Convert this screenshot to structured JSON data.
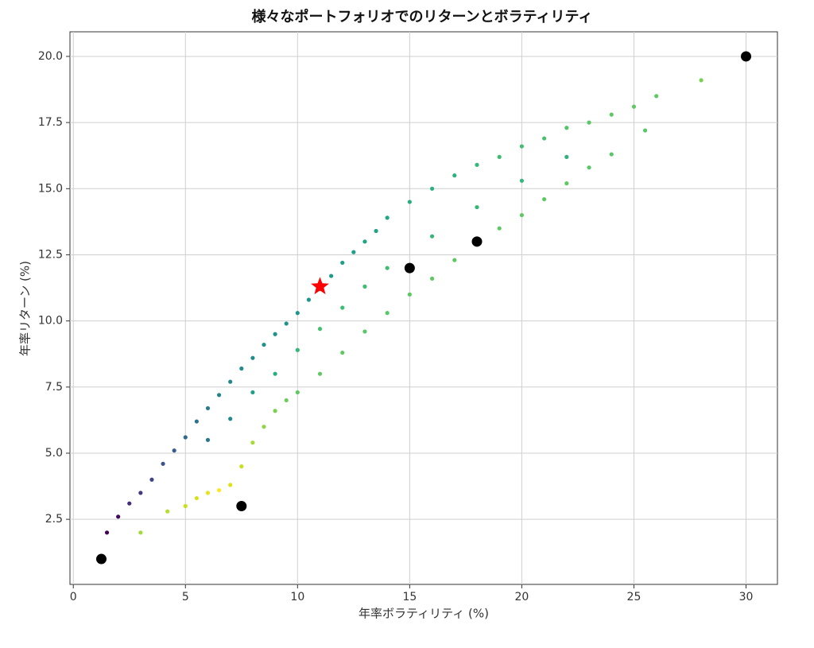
{
  "chart_data": {
    "type": "scatter",
    "title": "様々なポートフォリオでのリターンとボラティリティ",
    "xlabel": "年率ボラティリティ (%)",
    "ylabel": "年率リターン (%)",
    "xlim": [
      -0.15,
      31.4
    ],
    "ylim": [
      0.04,
      20.93
    ],
    "xticks": [
      0,
      5,
      10,
      15,
      20,
      25,
      30
    ],
    "yticks": [
      2.5,
      {
        "value": 5,
        "label": "5.0"
      },
      7.5,
      {
        "value": 10,
        "label": "10.0"
      },
      12.5,
      {
        "value": 15,
        "label": "15.0"
      },
      17.5,
      {
        "value": 20,
        "label": "20.0"
      }
    ],
    "grid": true,
    "series": [
      {
        "marker": "dot",
        "x": [
          1.5,
          2,
          2.5,
          3,
          3.5,
          4,
          4.5,
          5,
          5.5,
          6,
          6.5,
          7,
          7.5,
          8,
          8.5,
          9,
          9.5,
          10,
          10.5,
          11,
          11.5,
          12,
          12.5,
          13,
          13.5,
          14,
          15,
          16,
          17,
          18,
          19,
          20,
          21,
          22,
          23,
          24,
          25,
          26,
          28,
          3,
          4.2,
          5,
          5.5,
          6,
          6.5,
          7,
          7.5,
          8,
          8.5,
          9,
          9.5,
          10,
          11,
          12,
          13,
          14,
          15,
          16,
          17,
          18,
          19,
          20,
          21,
          22,
          23,
          24,
          25.5,
          6,
          7,
          8,
          9,
          10,
          11,
          12,
          13,
          14,
          16,
          18,
          20,
          22
        ],
        "values": [
          2,
          2.6,
          3.1,
          3.5,
          4,
          4.6,
          5.1,
          5.6,
          6.2,
          6.7,
          7.2,
          7.7,
          8.2,
          8.6,
          9.1,
          9.5,
          9.9,
          10.3,
          10.8,
          11.2,
          11.7,
          12.2,
          12.6,
          13,
          13.4,
          13.9,
          14.5,
          15,
          15.5,
          15.9,
          16.2,
          16.6,
          16.9,
          17.3,
          17.5,
          17.8,
          18.1,
          18.5,
          19.1,
          2,
          2.8,
          3,
          3.3,
          3.5,
          3.6,
          3.8,
          4.5,
          5.4,
          6,
          6.6,
          7,
          7.3,
          8,
          8.8,
          9.6,
          10.3,
          11,
          11.6,
          12.3,
          13,
          13.5,
          14,
          14.6,
          15.2,
          15.8,
          16.3,
          17.2,
          5.5,
          6.3,
          7.3,
          8,
          8.9,
          9.7,
          10.5,
          11.3,
          12,
          13.2,
          14.3,
          15.3,
          16.2
        ],
        "colors": [
          "#440154",
          "#46085c",
          "#472d7b",
          "#443a83",
          "#414487",
          "#3b528b",
          "#365c8d",
          "#31688e",
          "#2c728e",
          "#287c8e",
          "#26828e",
          "#25858e",
          "#23898e",
          "#228c8d",
          "#21918c",
          "#21918c",
          "#20928c",
          "#1f968b",
          "#1f968b",
          "#1f9a8a",
          "#1f9a8a",
          "#1f9e89",
          "#1f9e89",
          "#20a386",
          "#20a386",
          "#22a785",
          "#27ad81",
          "#2ab07f",
          "#2db27d",
          "#35b779",
          "#3dbc74",
          "#42be71",
          "#4ac16d",
          "#52c569",
          "#58c765",
          "#5ec962",
          "#5ec962",
          "#5ec962",
          "#7ad151",
          "#a2da37",
          "#b5de2b",
          "#c8e020",
          "#d8e219",
          "#e5e419",
          "#fde725",
          "#dde318",
          "#c8e020",
          "#a5db36",
          "#8ed645",
          "#7ad151",
          "#6ccd5a",
          "#5ec962",
          "#5ec962",
          "#5ec962",
          "#58c765",
          "#58c765",
          "#5ec962",
          "#5ec962",
          "#5ec962",
          "#5ec962",
          "#5ec962",
          "#5ec962",
          "#5ec962",
          "#5ec962",
          "#58c765",
          "#58c765",
          "#58c765",
          "#2a788e",
          "#23898e",
          "#1fa088",
          "#27ad81",
          "#35b779",
          "#44bf70",
          "#3dbc74",
          "#3dbc74",
          "#3dbc74",
          "#35b779",
          "#35b779",
          "#35b779",
          "#2db27d"
        ]
      },
      {
        "marker": "big-dot",
        "color": "#000000",
        "x": [
          1.25,
          7.5,
          15,
          18,
          30
        ],
        "values": [
          1,
          3,
          12,
          13,
          20
        ]
      },
      {
        "marker": "star",
        "color": "#ff0000",
        "x": [
          11
        ],
        "values": [
          11.3
        ]
      }
    ]
  }
}
